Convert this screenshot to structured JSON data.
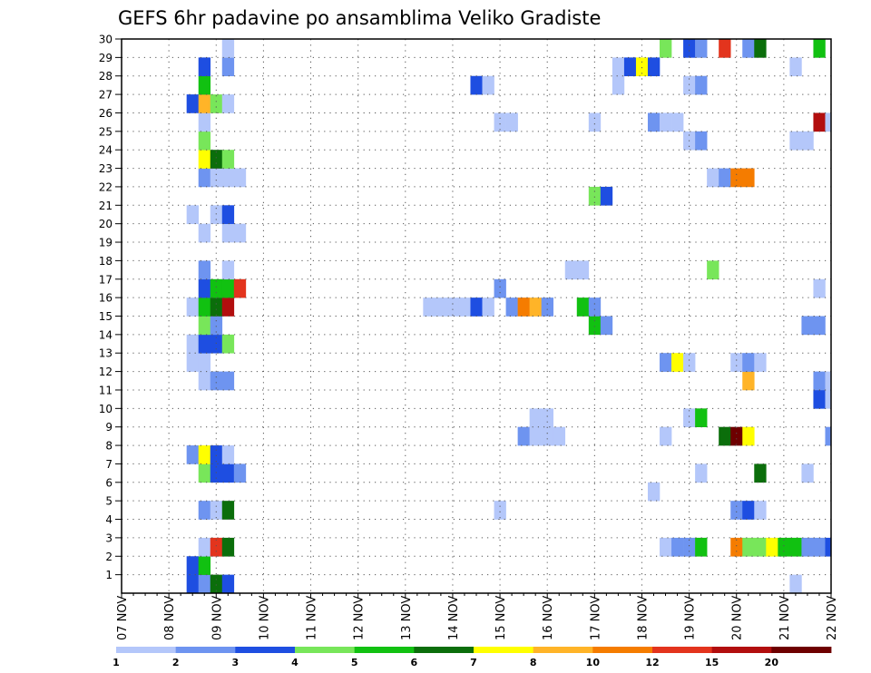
{
  "chart_data": {
    "type": "heatmap",
    "title": "GEFS 6hr padavine po ansamblima Veliko Gradiste",
    "x_tick_labels": [
      "07 NOV",
      "08 NOV",
      "09 NOV",
      "10 NOV",
      "11 NOV",
      "12 NOV",
      "13 NOV",
      "14 NOV",
      "15 NOV",
      "16 NOV",
      "17 NOV",
      "18 NOV",
      "19 NOV",
      "20 NOV",
      "21 NOV",
      "22 NOV"
    ],
    "y_tick_labels": [
      "1",
      "2",
      "3",
      "4",
      "5",
      "6",
      "7",
      "8",
      "9",
      "10",
      "11",
      "12",
      "13",
      "14",
      "15",
      "16",
      "17",
      "18",
      "19",
      "20",
      "21",
      "22",
      "23",
      "24",
      "25",
      "26",
      "27",
      "28",
      "29",
      "30"
    ],
    "x_unit": "6-hour steps from 07 NOV 00Z",
    "xlim": [
      0,
      60
    ],
    "ylim": [
      0,
      30
    ],
    "grid": true,
    "legend": {
      "position": "bottom",
      "bins": [
        {
          "label": "1",
          "color": "#b4c7fa"
        },
        {
          "label": "2",
          "color": "#6e94f0"
        },
        {
          "label": "3",
          "color": "#1e4ee1"
        },
        {
          "label": "4",
          "color": "#78e65a"
        },
        {
          "label": "5",
          "color": "#11c111"
        },
        {
          "label": "6",
          "color": "#0b6e0b"
        },
        {
          "label": "7",
          "color": "#ffff00"
        },
        {
          "label": "8",
          "color": "#ffb428"
        },
        {
          "label": "10",
          "color": "#f57c00"
        },
        {
          "label": "12",
          "color": "#e3341d"
        },
        {
          "label": "15",
          "color": "#b20e0e"
        },
        {
          "label": "20",
          "color": "#6e0000"
        }
      ]
    },
    "cells": [
      [
        6,
        0,
        3
      ],
      [
        7,
        0,
        2
      ],
      [
        8,
        0,
        6
      ],
      [
        9,
        0,
        3
      ],
      [
        57,
        0,
        1
      ],
      [
        6,
        1,
        3
      ],
      [
        7,
        1,
        5
      ],
      [
        7,
        2,
        1
      ],
      [
        8,
        2,
        12
      ],
      [
        9,
        2,
        6
      ],
      [
        46,
        2,
        1
      ],
      [
        47,
        2,
        2
      ],
      [
        48,
        2,
        2
      ],
      [
        49,
        2,
        5
      ],
      [
        52,
        2,
        10
      ],
      [
        53,
        2,
        4
      ],
      [
        54,
        2,
        4
      ],
      [
        55,
        2,
        7
      ],
      [
        56,
        2,
        5
      ],
      [
        57,
        2,
        5
      ],
      [
        58,
        2,
        2
      ],
      [
        59,
        2,
        2
      ],
      [
        60,
        2,
        3
      ],
      [
        7,
        4,
        2
      ],
      [
        8,
        4,
        1
      ],
      [
        9,
        4,
        6
      ],
      [
        32,
        4,
        1
      ],
      [
        52,
        4,
        2
      ],
      [
        53,
        4,
        3
      ],
      [
        54,
        4,
        1
      ],
      [
        45,
        5,
        1
      ],
      [
        7,
        6,
        4
      ],
      [
        8,
        6,
        3
      ],
      [
        9,
        6,
        3
      ],
      [
        10,
        6,
        2
      ],
      [
        49,
        6,
        1
      ],
      [
        54,
        6,
        6
      ],
      [
        58,
        6,
        1
      ],
      [
        6,
        7,
        2
      ],
      [
        7,
        7,
        7
      ],
      [
        8,
        7,
        3
      ],
      [
        9,
        7,
        1
      ],
      [
        34,
        8,
        2
      ],
      [
        35,
        8,
        1
      ],
      [
        36,
        8,
        1
      ],
      [
        37,
        8,
        1
      ],
      [
        46,
        8,
        1
      ],
      [
        51,
        8,
        6
      ],
      [
        52,
        8,
        20
      ],
      [
        53,
        8,
        7
      ],
      [
        60,
        8,
        2
      ],
      [
        35,
        9,
        1
      ],
      [
        36,
        9,
        1
      ],
      [
        48,
        9,
        1
      ],
      [
        49,
        9,
        5
      ],
      [
        59,
        10,
        3
      ],
      [
        60,
        10,
        1
      ],
      [
        7,
        11,
        1
      ],
      [
        8,
        11,
        2
      ],
      [
        9,
        11,
        2
      ],
      [
        53,
        11,
        8
      ],
      [
        59,
        11,
        2
      ],
      [
        60,
        11,
        1
      ],
      [
        6,
        12,
        1
      ],
      [
        7,
        12,
        1
      ],
      [
        46,
        12,
        2
      ],
      [
        47,
        12,
        7
      ],
      [
        48,
        12,
        1
      ],
      [
        52,
        12,
        1
      ],
      [
        53,
        12,
        2
      ],
      [
        54,
        12,
        1
      ],
      [
        6,
        13,
        1
      ],
      [
        7,
        13,
        3
      ],
      [
        8,
        13,
        3
      ],
      [
        9,
        13,
        4
      ],
      [
        7,
        14,
        4
      ],
      [
        8,
        14,
        2
      ],
      [
        40,
        14,
        5
      ],
      [
        41,
        14,
        2
      ],
      [
        58,
        14,
        2
      ],
      [
        59,
        14,
        2
      ],
      [
        6,
        15,
        1
      ],
      [
        7,
        15,
        5
      ],
      [
        8,
        15,
        6
      ],
      [
        9,
        15,
        15
      ],
      [
        26,
        15,
        1
      ],
      [
        27,
        15,
        1
      ],
      [
        28,
        15,
        1
      ],
      [
        29,
        15,
        1
      ],
      [
        30,
        15,
        3
      ],
      [
        31,
        15,
        1
      ],
      [
        33,
        15,
        2
      ],
      [
        34,
        15,
        10
      ],
      [
        35,
        15,
        8
      ],
      [
        36,
        15,
        2
      ],
      [
        39,
        15,
        5
      ],
      [
        40,
        15,
        2
      ],
      [
        7,
        16,
        3
      ],
      [
        8,
        16,
        5
      ],
      [
        9,
        16,
        5
      ],
      [
        10,
        16,
        12
      ],
      [
        32,
        16,
        2
      ],
      [
        59,
        16,
        1
      ],
      [
        7,
        17,
        2
      ],
      [
        9,
        17,
        1
      ],
      [
        38,
        17,
        1
      ],
      [
        39,
        17,
        1
      ],
      [
        50,
        17,
        4
      ],
      [
        7,
        19,
        1
      ],
      [
        9,
        19,
        1
      ],
      [
        10,
        19,
        1
      ],
      [
        6,
        20,
        1
      ],
      [
        8,
        20,
        1
      ],
      [
        9,
        20,
        3
      ],
      [
        40,
        21,
        4
      ],
      [
        41,
        21,
        3
      ],
      [
        7,
        22,
        2
      ],
      [
        8,
        22,
        1
      ],
      [
        9,
        22,
        1
      ],
      [
        10,
        22,
        1
      ],
      [
        50,
        22,
        1
      ],
      [
        51,
        22,
        2
      ],
      [
        52,
        22,
        10
      ],
      [
        53,
        22,
        10
      ],
      [
        7,
        23,
        7
      ],
      [
        8,
        23,
        6
      ],
      [
        9,
        23,
        4
      ],
      [
        7,
        24,
        4
      ],
      [
        48,
        24,
        1
      ],
      [
        49,
        24,
        2
      ],
      [
        57,
        24,
        1
      ],
      [
        58,
        24,
        1
      ],
      [
        7,
        25,
        1
      ],
      [
        32,
        25,
        1
      ],
      [
        33,
        25,
        1
      ],
      [
        40,
        25,
        1
      ],
      [
        45,
        25,
        2
      ],
      [
        46,
        25,
        1
      ],
      [
        47,
        25,
        1
      ],
      [
        59,
        25,
        15
      ],
      [
        60,
        25,
        1
      ],
      [
        6,
        26,
        3
      ],
      [
        7,
        26,
        8
      ],
      [
        8,
        26,
        4
      ],
      [
        9,
        26,
        1
      ],
      [
        7,
        27,
        5
      ],
      [
        30,
        27,
        3
      ],
      [
        31,
        27,
        1
      ],
      [
        42,
        27,
        1
      ],
      [
        48,
        27,
        1
      ],
      [
        49,
        27,
        2
      ],
      [
        7,
        28,
        3
      ],
      [
        9,
        28,
        2
      ],
      [
        42,
        28,
        1
      ],
      [
        43,
        28,
        3
      ],
      [
        44,
        28,
        7
      ],
      [
        45,
        28,
        3
      ],
      [
        57,
        28,
        1
      ],
      [
        9,
        29,
        1
      ],
      [
        46,
        29,
        4
      ],
      [
        48,
        29,
        3
      ],
      [
        49,
        29,
        2
      ],
      [
        51,
        29,
        12
      ],
      [
        53,
        29,
        2
      ],
      [
        54,
        29,
        6
      ],
      [
        59,
        29,
        5
      ]
    ]
  }
}
